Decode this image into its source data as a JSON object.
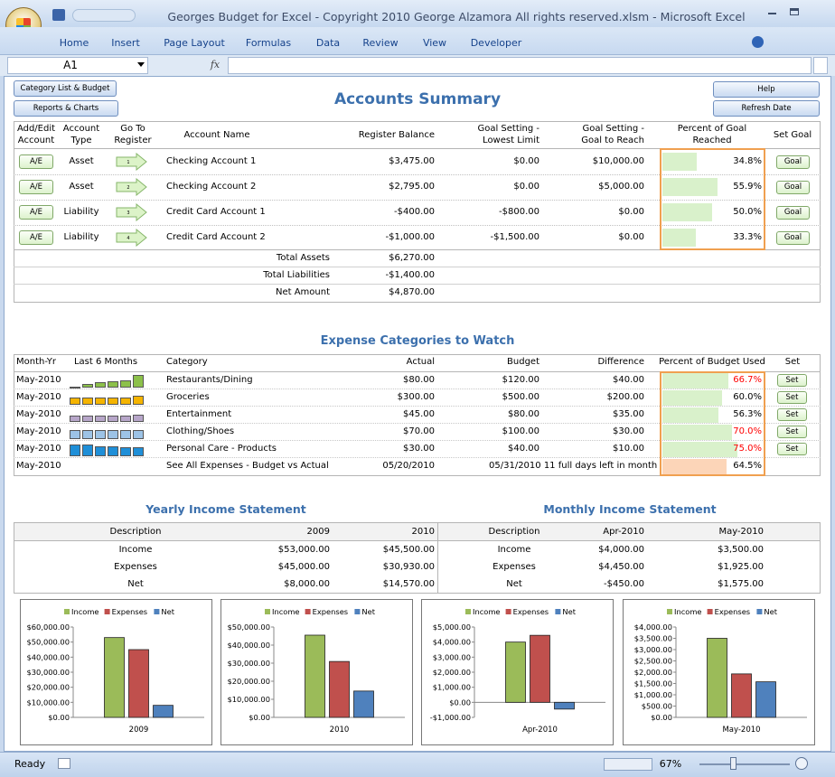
{
  "window": {
    "title": "Georges Budget for Excel - Copyright 2010  George Alzamora  All rights reserved.xlsm - Microsoft Excel",
    "tabs": [
      "Home",
      "Insert",
      "Page Layout",
      "Formulas",
      "Data",
      "Review",
      "View",
      "Developer"
    ],
    "name_box": "A1",
    "fx": "fx"
  },
  "buttons": {
    "category_list": "Category List & Budget",
    "reports": "Reports & Charts",
    "help": "Help",
    "refresh": "Refresh Date"
  },
  "accounts": {
    "title": "Accounts Summary",
    "headers": [
      "Add/Edit Account",
      "Account Type",
      "Go To Register",
      "Account Name",
      "Register Balance",
      "Goal Setting - Lowest Limit",
      "Goal Setting - Goal to Reach",
      "Percent of Goal Reached",
      "Set Goal"
    ],
    "bar_color": "#d9f1cb",
    "rows": [
      {
        "edit": "A/E",
        "type": "Asset",
        "register": "1",
        "name": "Checking Account 1",
        "balance": "$3,475.00",
        "low": "$0.00",
        "goal": "$10,000.00",
        "pct": 34.8,
        "pct_label": "34.8%",
        "set": "Goal"
      },
      {
        "edit": "A/E",
        "type": "Asset",
        "register": "2",
        "name": "Checking Account 2",
        "balance": "$2,795.00",
        "low": "$0.00",
        "goal": "$5,000.00",
        "pct": 55.9,
        "pct_label": "55.9%",
        "set": "Goal"
      },
      {
        "edit": "A/E",
        "type": "Liability",
        "register": "3",
        "name": "Credit Card Account 1",
        "balance": "-$400.00",
        "low": "-$800.00",
        "goal": "$0.00",
        "pct": 50.0,
        "pct_label": "50.0%",
        "set": "Goal"
      },
      {
        "edit": "A/E",
        "type": "Liability",
        "register": "4",
        "name": "Credit Card Account 2",
        "balance": "-$1,000.00",
        "low": "-$1,500.00",
        "goal": "$0.00",
        "pct": 33.3,
        "pct_label": "33.3%",
        "set": "Goal"
      }
    ],
    "totals": [
      {
        "label": "Total Assets",
        "value": "$6,270.00"
      },
      {
        "label": "Total Liabilities",
        "value": "-$1,400.00"
      },
      {
        "label": "Net Amount",
        "value": "$4,870.00"
      }
    ]
  },
  "expenses": {
    "title": "Expense Categories to Watch",
    "headers": [
      "Month-Yr",
      "Last 6 Months",
      "Category",
      "Actual",
      "Budget",
      "Difference",
      "Percent of Budget Used",
      "Set"
    ],
    "bar_color": "#d9f1cb",
    "rows": [
      {
        "month": "May-2010",
        "spark": [
          1,
          3,
          4,
          5,
          6,
          10
        ],
        "spark_color": "#8cc04a",
        "category": "Restaurants/Dining",
        "actual": "$80.00",
        "budget": "$120.00",
        "difference": "$40.00",
        "pct": 66.7,
        "pct_label": "66.7%",
        "pct_color": "#ff0000",
        "set": "Set"
      },
      {
        "month": "May-2010",
        "spark": [
          6,
          6,
          6,
          6,
          6,
          7
        ],
        "spark_color": "#f5b400",
        "category": "Groceries",
        "actual": "$300.00",
        "budget": "$500.00",
        "difference": "$200.00",
        "pct": 60.0,
        "pct_label": "60.0%",
        "pct_color": "#000000",
        "set": "Set"
      },
      {
        "month": "May-2010",
        "spark": [
          5,
          5,
          5,
          5,
          5,
          6
        ],
        "spark_color": "#b7a6c9",
        "category": "Entertainment",
        "actual": "$45.00",
        "budget": "$80.00",
        "difference": "$35.00",
        "pct": 56.3,
        "pct_label": "56.3%",
        "pct_color": "#000000",
        "set": "Set"
      },
      {
        "month": "May-2010",
        "spark": [
          7,
          7,
          7,
          7,
          7,
          7
        ],
        "spark_color": "#9dc3e6",
        "category": "Clothing/Shoes",
        "actual": "$70.00",
        "budget": "$100.00",
        "difference": "$30.00",
        "pct": 70.0,
        "pct_label": "70.0%",
        "pct_color": "#ff0000",
        "set": "Set"
      },
      {
        "month": "May-2010",
        "spark": [
          9,
          9,
          8,
          8,
          7,
          7
        ],
        "spark_color": "#1f8fd8",
        "category": "Personal Care - Products",
        "actual": "$30.00",
        "budget": "$40.00",
        "difference": "$10.00",
        "pct": 75.0,
        "pct_label": "75.0%",
        "pct_color": "#ff0000",
        "set": "Set"
      }
    ],
    "footer": {
      "month": "May-2010",
      "category": "See All Expenses - Budget vs Actual",
      "actual": "05/20/2010",
      "budget": "05/31/2010 11 full days left in month",
      "pct": 64.5,
      "pct_label": "64.5%",
      "bar_color": "#fcd5b8"
    }
  },
  "income": {
    "yearly_title": "Yearly Income Statement",
    "monthly_title": "Monthly Income Statement",
    "yearly_headers": [
      "Description",
      "2009",
      "2010"
    ],
    "yearly_rows": [
      [
        "Income",
        "$53,000.00",
        "$45,500.00"
      ],
      [
        "Expenses",
        "$45,000.00",
        "$30,930.00"
      ],
      [
        "Net",
        "$8,000.00",
        "$14,570.00"
      ]
    ],
    "monthly_headers": [
      "Description",
      "Apr-2010",
      "May-2010"
    ],
    "monthly_rows": [
      [
        "Income",
        "$4,000.00",
        "$3,500.00"
      ],
      [
        "Expenses",
        "$4,450.00",
        "$1,925.00"
      ],
      [
        "Net",
        "-$450.00",
        "$1,575.00"
      ]
    ]
  },
  "chart_data": [
    {
      "type": "bar",
      "categories": [
        "2009"
      ],
      "series": [
        {
          "name": "Income",
          "color": "#9bbb59",
          "values": [
            53000
          ]
        },
        {
          "name": "Expenses",
          "color": "#c0504d",
          "values": [
            45000
          ]
        },
        {
          "name": "Net",
          "color": "#4f81bd",
          "values": [
            8000
          ]
        }
      ],
      "ylim": [
        0,
        60000
      ],
      "yticks": [
        {
          "value": 0,
          "label": "$0.00"
        },
        {
          "value": 10000,
          "label": "$10,000.00"
        },
        {
          "value": 20000,
          "label": "$20,000.00"
        },
        {
          "value": 30000,
          "label": "$30,000.00"
        },
        {
          "value": 40000,
          "label": "$40,000.00"
        },
        {
          "value": 50000,
          "label": "$50,000.00"
        },
        {
          "value": 60000,
          "label": "$60,000.00"
        }
      ]
    },
    {
      "type": "bar",
      "categories": [
        "2010"
      ],
      "series": [
        {
          "name": "Income",
          "color": "#9bbb59",
          "values": [
            45500
          ]
        },
        {
          "name": "Expenses",
          "color": "#c0504d",
          "values": [
            30930
          ]
        },
        {
          "name": "Net",
          "color": "#4f81bd",
          "values": [
            14570
          ]
        }
      ],
      "ylim": [
        0,
        50000
      ],
      "yticks": [
        {
          "value": 0,
          "label": "$0.00"
        },
        {
          "value": 10000,
          "label": "$10,000.00"
        },
        {
          "value": 20000,
          "label": "$20,000.00"
        },
        {
          "value": 30000,
          "label": "$30,000.00"
        },
        {
          "value": 40000,
          "label": "$40,000.00"
        },
        {
          "value": 50000,
          "label": "$50,000.00"
        }
      ]
    },
    {
      "type": "bar",
      "categories": [
        "Apr-2010"
      ],
      "series": [
        {
          "name": "Income",
          "color": "#9bbb59",
          "values": [
            4000
          ]
        },
        {
          "name": "Expenses",
          "color": "#c0504d",
          "values": [
            4450
          ]
        },
        {
          "name": "Net",
          "color": "#4f81bd",
          "values": [
            -450
          ]
        }
      ],
      "ylim": [
        -1000,
        5000
      ],
      "yticks": [
        {
          "value": -1000,
          "label": "-$1,000.00"
        },
        {
          "value": 0,
          "label": "$0.00"
        },
        {
          "value": 1000,
          "label": "$1,000.00"
        },
        {
          "value": 2000,
          "label": "$2,000.00"
        },
        {
          "value": 3000,
          "label": "$3,000.00"
        },
        {
          "value": 4000,
          "label": "$4,000.00"
        },
        {
          "value": 5000,
          "label": "$5,000.00"
        }
      ]
    },
    {
      "type": "bar",
      "categories": [
        "May-2010"
      ],
      "series": [
        {
          "name": "Income",
          "color": "#9bbb59",
          "values": [
            3500
          ]
        },
        {
          "name": "Expenses",
          "color": "#c0504d",
          "values": [
            1925
          ]
        },
        {
          "name": "Net",
          "color": "#4f81bd",
          "values": [
            1575
          ]
        }
      ],
      "ylim": [
        0,
        4000
      ],
      "yticks": [
        {
          "value": 0,
          "label": "$0.00"
        },
        {
          "value": 500,
          "label": "$500.00"
        },
        {
          "value": 1000,
          "label": "$1,000.00"
        },
        {
          "value": 1500,
          "label": "$1,500.00"
        },
        {
          "value": 2000,
          "label": "$2,000.00"
        },
        {
          "value": 2500,
          "label": "$2,500.00"
        },
        {
          "value": 3000,
          "label": "$3,000.00"
        },
        {
          "value": 3500,
          "label": "$3,500.00"
        },
        {
          "value": 4000,
          "label": "$4,000.00"
        }
      ]
    }
  ],
  "status": {
    "ready": "Ready",
    "zoom": "67%"
  }
}
